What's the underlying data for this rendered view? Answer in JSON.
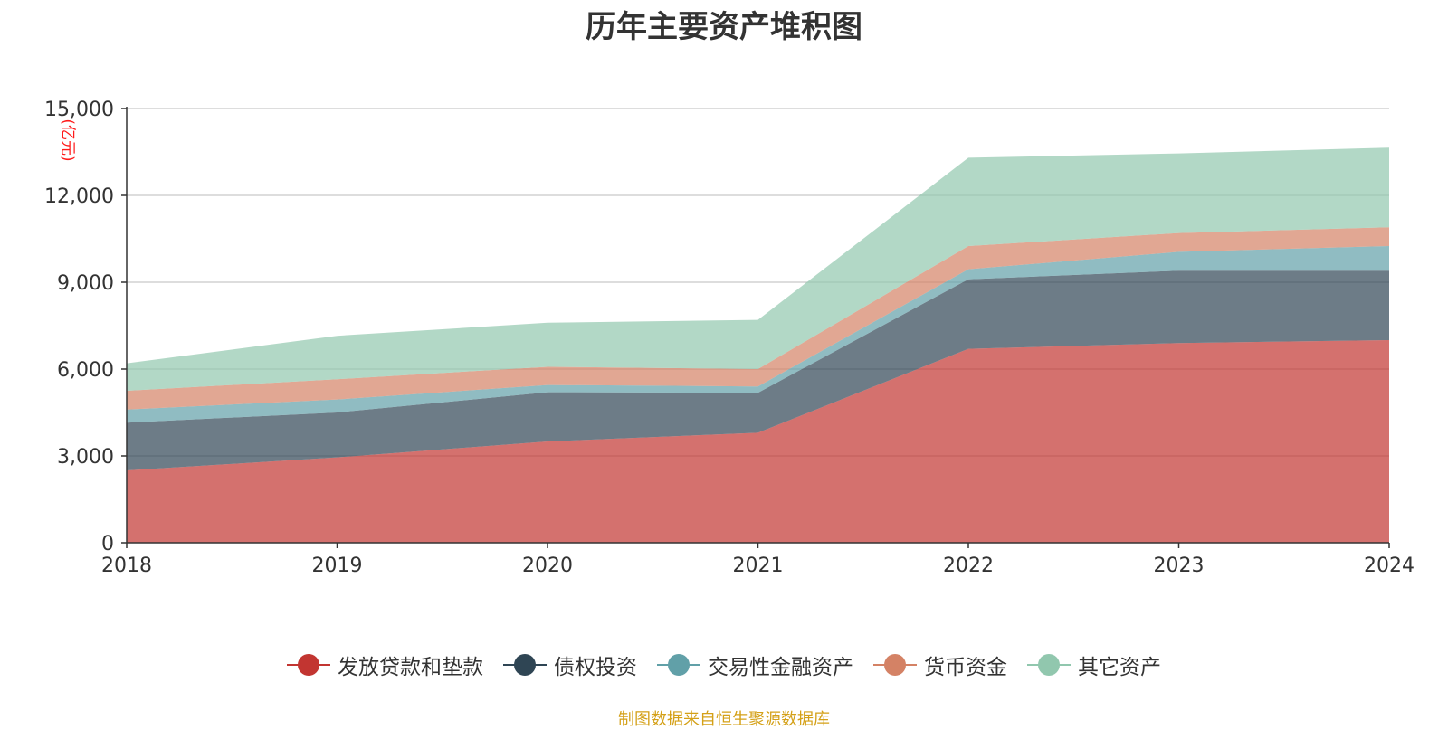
{
  "chart_data": {
    "type": "area",
    "stacked": true,
    "title": "历年主要资产堆积图",
    "unit_label": "(亿元)",
    "categories": [
      "2018",
      "2019",
      "2020",
      "2021",
      "2022",
      "2023",
      "2024"
    ],
    "ylim": [
      0,
      15000
    ],
    "yticks": [
      0,
      3000,
      6000,
      9000,
      12000,
      15000
    ],
    "ytick_labels": [
      "0",
      "3,000",
      "6,000",
      "9,000",
      "12,000",
      "15,000"
    ],
    "grid": true,
    "legend_position": "bottom",
    "series": [
      {
        "name": "发放贷款和垫款",
        "color": "#c23531",
        "values": [
          2500,
          2950,
          3500,
          3800,
          6700,
          6900,
          7000
        ]
      },
      {
        "name": "债权投资",
        "color": "#2f4554",
        "values": [
          1650,
          1550,
          1700,
          1380,
          2400,
          2500,
          2400
        ]
      },
      {
        "name": "交易性金融资产",
        "color": "#61a0a8",
        "values": [
          450,
          450,
          250,
          220,
          350,
          650,
          850
        ]
      },
      {
        "name": "货币资金",
        "color": "#d48265",
        "values": [
          650,
          700,
          630,
          600,
          800,
          650,
          650
        ]
      },
      {
        "name": "其它资产",
        "color": "#91c7ae",
        "values": [
          950,
          1500,
          1520,
          1700,
          3050,
          2750,
          2750
        ]
      }
    ]
  },
  "footer": {
    "source": "制图数据来自恒生聚源数据库"
  }
}
